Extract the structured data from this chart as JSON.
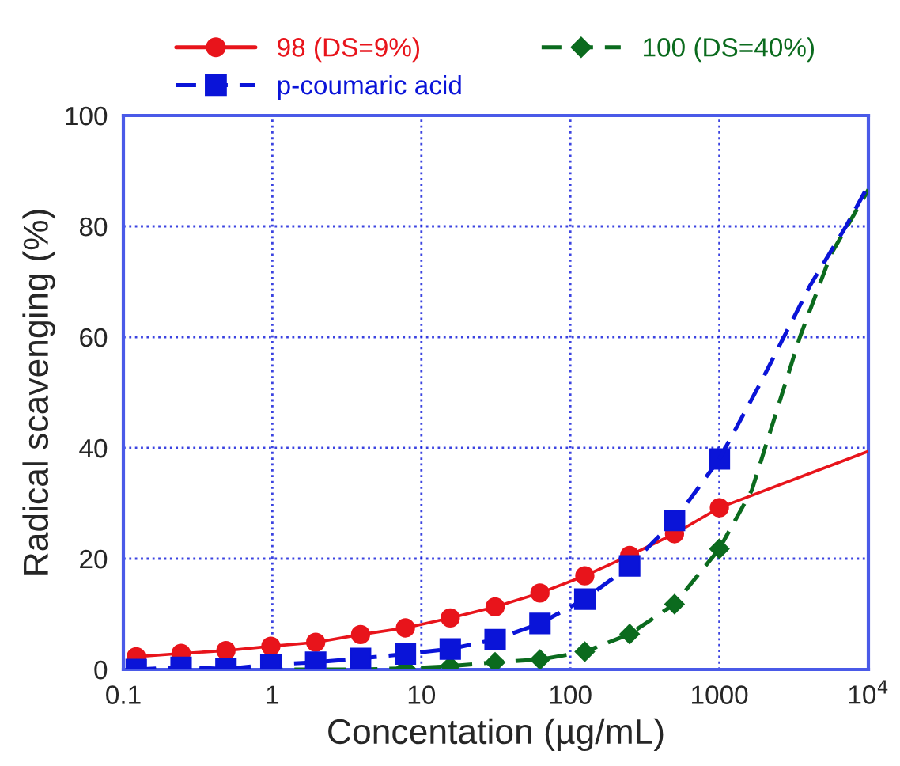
{
  "chart_data": {
    "type": "line",
    "xlabel": "Concentation (µg/mL)",
    "ylabel": "Radical scavenging (%)",
    "log": "x",
    "grid": true,
    "legend": "top",
    "x": [
      0.122,
      0.244,
      0.488,
      0.977,
      1.953,
      3.906,
      7.813,
      15.625,
      31.25,
      62.5,
      125,
      250,
      500,
      1000
    ],
    "xlim": [
      0.1,
      10000
    ],
    "xticks": [
      0.1,
      1,
      10,
      100,
      1000,
      {
        "value": 10000,
        "label": "10$^{4}$"
      }
    ],
    "ylim": [
      0,
      100
    ],
    "yticks": [
      0,
      20,
      40,
      60,
      80,
      100
    ],
    "series": [
      {
        "name": "98 (DS=9%)",
        "color": "#e8141b",
        "marker": "circle",
        "line_style": "solid",
        "values": [
          2.3,
          2.9,
          3.4,
          4.2,
          4.9,
          6.3,
          7.5,
          9.3,
          11.3,
          13.8,
          16.9,
          20.6,
          24.5,
          29.2
        ]
      },
      {
        "name": "100 (DS=40%)",
        "color": "#0b6b1e",
        "marker": "diamond",
        "line_style": "dashed",
        "values": [
          0,
          0,
          0,
          0,
          0,
          0,
          0.2,
          0.6,
          1.3,
          1.8,
          3.2,
          6.4,
          11.8,
          21.8
        ]
      },
      {
        "name": "p-coumaric acid",
        "color": "#0a14d8",
        "marker": "square",
        "line_style": "dashed",
        "values": [
          0,
          0.4,
          0.1,
          0.9,
          1.3,
          2.0,
          2.8,
          3.7,
          5.4,
          8.3,
          12.7,
          18.7,
          26.9,
          38
        ]
      },
      {
        "color": "#e8141b",
        "marker": "none",
        "line_style": "solid",
        "x": [
          1000,
          10000
        ],
        "values": [
          29.2,
          39.4
        ]
      },
      {
        "color": "#0b6b1e",
        "marker": "none",
        "line_style": "dashed",
        "x": [
          1000,
          1648,
          3470,
          5620,
          10000
        ],
        "values": [
          21.8,
          32.3,
          60,
          75,
          86.6
        ]
      },
      {
        "color": "#0a14d8",
        "marker": "none",
        "line_style": "dashed",
        "x": [
          1000,
          1860,
          4080,
          7080,
          10000
        ],
        "values": [
          38,
          51.4,
          69.4,
          80,
          87.4
        ]
      }
    ]
  }
}
